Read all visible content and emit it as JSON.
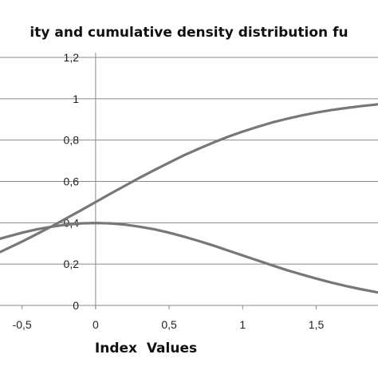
{
  "chart_data": {
    "type": "line",
    "title": "ity and cumulative density distribution fu",
    "xlabel": "Index  Values",
    "ylabel": "",
    "xlim": [
      -0.65,
      1.92
    ],
    "ylim": [
      0,
      1.2
    ],
    "xticks": [
      -0.5,
      0,
      0.5,
      1,
      1.5
    ],
    "xtick_labels": [
      "-0,5",
      "0",
      "0,5",
      "1",
      "1,5"
    ],
    "yticks": [
      0,
      0.2,
      0.4,
      0.6,
      0.8,
      1.0,
      1.2
    ],
    "ytick_labels": [
      "0",
      "0,2",
      "0,4",
      "0,6",
      "0,8",
      "1",
      "1,2"
    ],
    "grid": "horizontal",
    "legend": "none",
    "line_color": "#777777",
    "series": [
      {
        "x": [
          -0.65,
          -0.5,
          -0.4,
          -0.3,
          -0.2,
          -0.1,
          0,
          0.1,
          0.2,
          0.3,
          0.4,
          0.5,
          0.6,
          0.7,
          0.8,
          0.9,
          1.0,
          1.1,
          1.2,
          1.3,
          1.4,
          1.5,
          1.6,
          1.7,
          1.8,
          1.92
        ],
        "y": [
          0.323,
          0.352,
          0.368,
          0.381,
          0.391,
          0.397,
          0.399,
          0.397,
          0.391,
          0.381,
          0.368,
          0.352,
          0.333,
          0.312,
          0.29,
          0.266,
          0.242,
          0.218,
          0.194,
          0.171,
          0.15,
          0.13,
          0.111,
          0.094,
          0.079,
          0.063
        ]
      },
      {
        "x": [
          -0.65,
          -0.5,
          -0.4,
          -0.3,
          -0.2,
          -0.1,
          0,
          0.1,
          0.2,
          0.3,
          0.4,
          0.5,
          0.6,
          0.7,
          0.8,
          0.9,
          1.0,
          1.1,
          1.2,
          1.3,
          1.4,
          1.5,
          1.6,
          1.7,
          1.8,
          1.92
        ],
        "y": [
          0.258,
          0.309,
          0.345,
          0.382,
          0.421,
          0.46,
          0.5,
          0.54,
          0.579,
          0.618,
          0.655,
          0.691,
          0.726,
          0.758,
          0.788,
          0.816,
          0.841,
          0.864,
          0.885,
          0.903,
          0.919,
          0.933,
          0.945,
          0.955,
          0.964,
          0.973
        ]
      }
    ]
  }
}
